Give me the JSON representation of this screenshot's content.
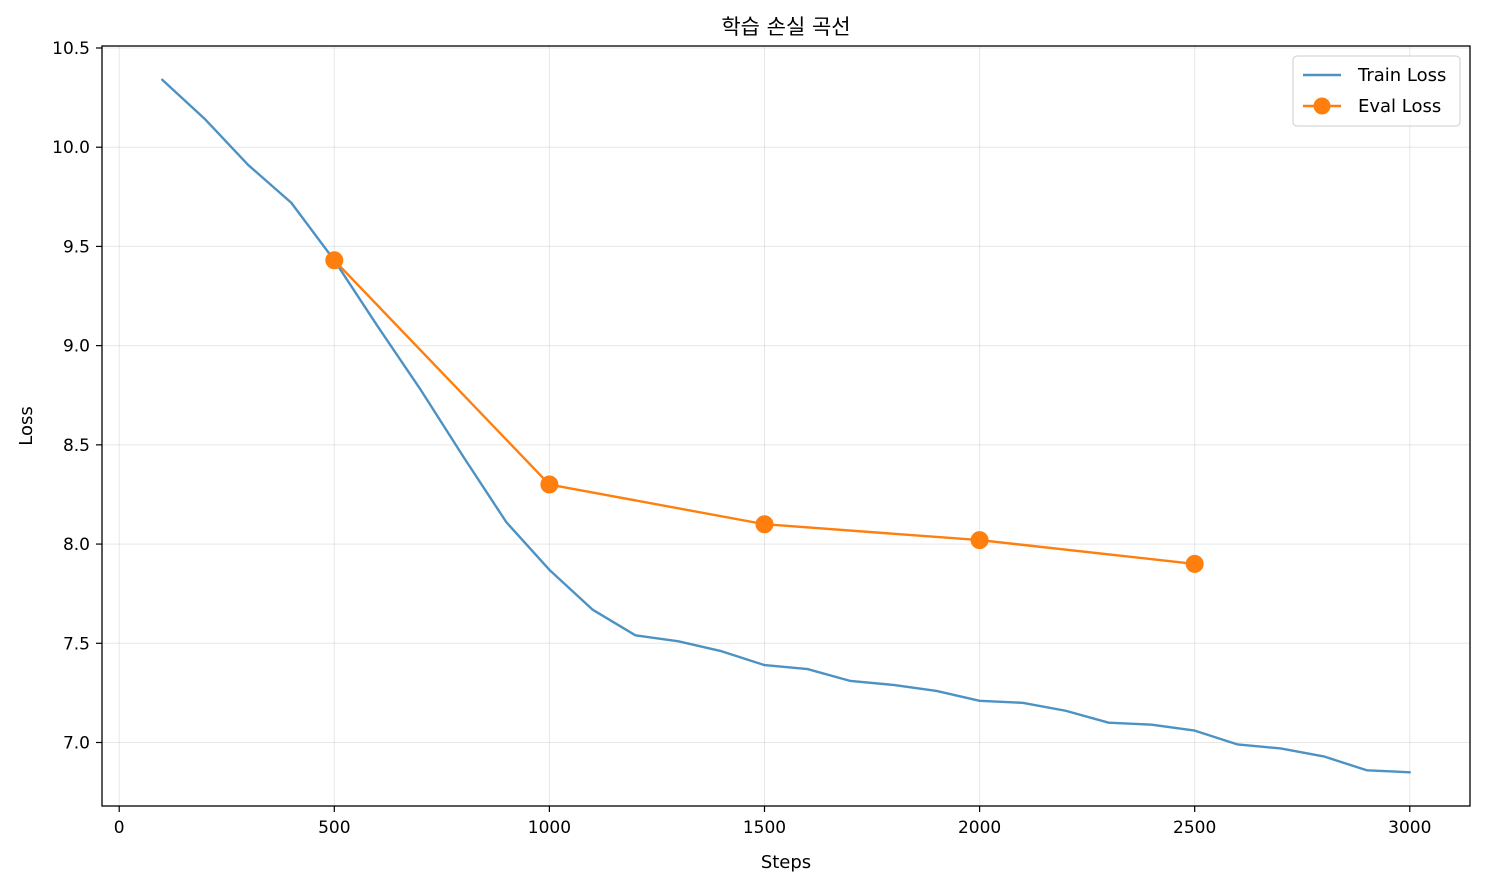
{
  "chart_data": {
    "type": "line",
    "title": "학습 손실 곡선",
    "xlabel": "Steps",
    "ylabel": "Loss",
    "xlim": [
      -40,
      3140
    ],
    "ylim": [
      6.68,
      10.51
    ],
    "xticks": [
      0,
      500,
      1000,
      1500,
      2000,
      2500,
      3000
    ],
    "yticks": [
      7.0,
      7.5,
      8.0,
      8.5,
      9.0,
      9.5,
      10.0,
      10.5
    ],
    "grid": true,
    "legend_position": "top-right",
    "series": [
      {
        "name": "Train Loss",
        "color": "#1f77b4",
        "marker": "none",
        "x": [
          100,
          200,
          300,
          400,
          500,
          600,
          700,
          800,
          900,
          1000,
          1100,
          1200,
          1300,
          1400,
          1500,
          1600,
          1700,
          1800,
          1900,
          2000,
          2100,
          2200,
          2300,
          2400,
          2500,
          2600,
          2700,
          2800,
          2900,
          3000
        ],
        "y": [
          10.34,
          10.14,
          9.91,
          9.72,
          9.43,
          9.1,
          8.78,
          8.44,
          8.11,
          7.87,
          7.67,
          7.54,
          7.51,
          7.46,
          7.39,
          7.37,
          7.31,
          7.29,
          7.26,
          7.21,
          7.2,
          7.16,
          7.1,
          7.09,
          7.06,
          6.99,
          6.97,
          6.93,
          6.86,
          6.85
        ]
      },
      {
        "name": "Eval Loss",
        "color": "#ff7f0e",
        "marker": "circle",
        "x": [
          500,
          1000,
          1500,
          2000,
          2500
        ],
        "y": [
          9.43,
          8.3,
          8.1,
          8.02,
          7.9
        ]
      }
    ]
  }
}
